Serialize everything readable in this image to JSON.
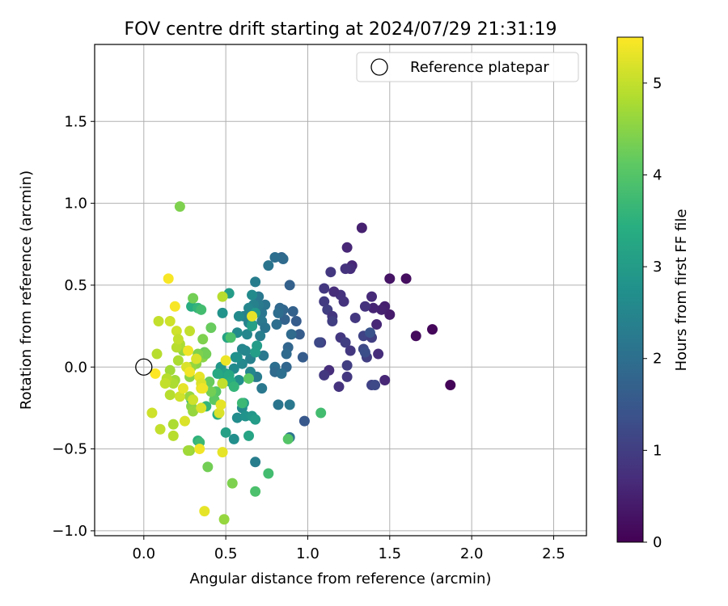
{
  "chart_data": {
    "type": "scatter",
    "title": "FOV centre drift starting at 2024/07/29 21:31:19",
    "xlabel": "Angular distance from reference (arcmin)",
    "ylabel": "Rotation from reference (arcmin)",
    "xlim": [
      -0.3,
      2.7
    ],
    "ylim": [
      -1.03,
      1.97
    ],
    "xticks": [
      "0.0",
      "0.5",
      "1.0",
      "1.5",
      "2.0",
      "2.5"
    ],
    "yticks": [
      "−1.0",
      "−0.5",
      "0.0",
      "0.5",
      "1.0",
      "1.5"
    ],
    "grid": true,
    "legend": {
      "placement": "top-right",
      "entries": [
        "Reference platepar"
      ]
    },
    "reference_point": {
      "label": "Reference platepar",
      "x": 0.0,
      "y": 0.0
    },
    "colorbar": {
      "label": "Hours from first FF file",
      "range": [
        0,
        5.5
      ],
      "ticks": [
        "0",
        "1",
        "2",
        "3",
        "4",
        "5"
      ],
      "colormap": "viridis"
    },
    "points": [
      {
        "x": 1.87,
        "y": -0.11,
        "h": 0.05
      },
      {
        "x": 1.76,
        "y": 0.23,
        "h": 0.1
      },
      {
        "x": 1.66,
        "y": 0.19,
        "h": 0.15
      },
      {
        "x": 1.6,
        "y": 0.54,
        "h": 0.2
      },
      {
        "x": 1.5,
        "y": 0.54,
        "h": 0.3
      },
      {
        "x": 1.5,
        "y": 0.32,
        "h": 0.4
      },
      {
        "x": 1.47,
        "y": 0.37,
        "h": 0.45
      },
      {
        "x": 1.45,
        "y": 0.35,
        "h": 0.5
      },
      {
        "x": 1.47,
        "y": -0.08,
        "h": 0.6
      },
      {
        "x": 1.42,
        "y": 0.26,
        "h": 0.6
      },
      {
        "x": 1.43,
        "y": 0.08,
        "h": 0.7
      },
      {
        "x": 1.4,
        "y": 0.36,
        "h": 0.55
      },
      {
        "x": 1.39,
        "y": 0.43,
        "h": 0.65
      },
      {
        "x": 1.35,
        "y": 0.37,
        "h": 0.8
      },
      {
        "x": 1.33,
        "y": 0.85,
        "h": 0.5
      },
      {
        "x": 1.27,
        "y": 0.62,
        "h": 0.6
      },
      {
        "x": 1.26,
        "y": 0.6,
        "h": 0.7
      },
      {
        "x": 1.24,
        "y": 0.73,
        "h": 0.6
      },
      {
        "x": 1.23,
        "y": 0.6,
        "h": 0.8
      },
      {
        "x": 1.29,
        "y": 0.3,
        "h": 0.9
      },
      {
        "x": 1.14,
        "y": 0.58,
        "h": 0.9
      },
      {
        "x": 1.2,
        "y": 0.44,
        "h": 0.8
      },
      {
        "x": 1.16,
        "y": 0.46,
        "h": 0.7
      },
      {
        "x": 1.1,
        "y": 0.48,
        "h": 0.9
      },
      {
        "x": 1.1,
        "y": 0.4,
        "h": 0.95
      },
      {
        "x": 1.12,
        "y": 0.35,
        "h": 1.0
      },
      {
        "x": 1.15,
        "y": 0.31,
        "h": 0.85
      },
      {
        "x": 1.15,
        "y": 0.28,
        "h": 1.0
      },
      {
        "x": 1.22,
        "y": 0.4,
        "h": 0.8
      },
      {
        "x": 1.2,
        "y": 0.18,
        "h": 0.9
      },
      {
        "x": 1.23,
        "y": 0.15,
        "h": 1.0
      },
      {
        "x": 1.26,
        "y": 0.1,
        "h": 0.9
      },
      {
        "x": 1.24,
        "y": 0.01,
        "h": 1.0
      },
      {
        "x": 1.24,
        "y": -0.06,
        "h": 0.9
      },
      {
        "x": 1.19,
        "y": -0.12,
        "h": 0.8
      },
      {
        "x": 1.13,
        "y": -0.02,
        "h": 0.7
      },
      {
        "x": 1.1,
        "y": -0.05,
        "h": 0.9
      },
      {
        "x": 1.08,
        "y": 0.15,
        "h": 1.0
      },
      {
        "x": 1.07,
        "y": 0.15,
        "h": 1.2
      },
      {
        "x": 1.34,
        "y": 0.19,
        "h": 1.1
      },
      {
        "x": 1.34,
        "y": 0.11,
        "h": 1.2
      },
      {
        "x": 1.36,
        "y": 0.06,
        "h": 1.0
      },
      {
        "x": 1.35,
        "y": 0.09,
        "h": 1.3
      },
      {
        "x": 1.39,
        "y": 0.18,
        "h": 1.0
      },
      {
        "x": 1.39,
        "y": -0.11,
        "h": 1.1
      },
      {
        "x": 1.41,
        "y": -0.11,
        "h": 1.2
      },
      {
        "x": 1.38,
        "y": 0.21,
        "h": 1.4
      },
      {
        "x": 0.98,
        "y": -0.33,
        "h": 1.5
      },
      {
        "x": 0.97,
        "y": 0.06,
        "h": 1.6
      },
      {
        "x": 0.95,
        "y": 0.2,
        "h": 1.6
      },
      {
        "x": 0.93,
        "y": 0.28,
        "h": 1.6
      },
      {
        "x": 0.91,
        "y": 0.34,
        "h": 1.7
      },
      {
        "x": 0.89,
        "y": 0.5,
        "h": 1.7
      },
      {
        "x": 0.9,
        "y": 0.2,
        "h": 1.9
      },
      {
        "x": 0.88,
        "y": 0.12,
        "h": 1.8
      },
      {
        "x": 0.87,
        "y": 0.08,
        "h": 1.9
      },
      {
        "x": 0.87,
        "y": 0.0,
        "h": 1.8
      },
      {
        "x": 0.86,
        "y": 0.29,
        "h": 1.75
      },
      {
        "x": 0.85,
        "y": 0.35,
        "h": 1.8
      },
      {
        "x": 0.84,
        "y": 0.67,
        "h": 1.8
      },
      {
        "x": 0.85,
        "y": 0.66,
        "h": 1.9
      },
      {
        "x": 0.8,
        "y": 0.67,
        "h": 2.0
      },
      {
        "x": 0.83,
        "y": 0.36,
        "h": 1.85
      },
      {
        "x": 0.82,
        "y": 0.33,
        "h": 1.95
      },
      {
        "x": 0.81,
        "y": 0.26,
        "h": 2.0
      },
      {
        "x": 0.8,
        "y": 0.0,
        "h": 2.0
      },
      {
        "x": 0.8,
        "y": -0.03,
        "h": 1.9
      },
      {
        "x": 0.84,
        "y": -0.04,
        "h": 2.0
      },
      {
        "x": 0.82,
        "y": -0.23,
        "h": 2.1
      },
      {
        "x": 0.89,
        "y": -0.23,
        "h": 2.2
      },
      {
        "x": 0.89,
        "y": -0.43,
        "h": 2.1
      },
      {
        "x": 0.76,
        "y": 0.62,
        "h": 2.1
      },
      {
        "x": 0.74,
        "y": 0.38,
        "h": 2.1
      },
      {
        "x": 0.72,
        "y": 0.33,
        "h": 2.15
      },
      {
        "x": 0.7,
        "y": 0.43,
        "h": 2.2
      },
      {
        "x": 0.7,
        "y": 0.38,
        "h": 2.25
      },
      {
        "x": 0.68,
        "y": 0.52,
        "h": 2.3
      },
      {
        "x": 0.67,
        "y": 0.38,
        "h": 2.4
      },
      {
        "x": 0.72,
        "y": 0.28,
        "h": 2.2
      },
      {
        "x": 0.74,
        "y": 0.24,
        "h": 2.1
      },
      {
        "x": 0.71,
        "y": 0.19,
        "h": 2.3
      },
      {
        "x": 0.73,
        "y": 0.07,
        "h": 2.2
      },
      {
        "x": 0.72,
        "y": -0.13,
        "h": 2.2
      },
      {
        "x": 0.69,
        "y": -0.06,
        "h": 2.3
      },
      {
        "x": 0.68,
        "y": -0.06,
        "h": 2.25
      },
      {
        "x": 0.68,
        "y": -0.58,
        "h": 2.3
      },
      {
        "x": 0.65,
        "y": 0.05,
        "h": 2.4
      },
      {
        "x": 0.65,
        "y": -0.03,
        "h": 2.5
      },
      {
        "x": 0.66,
        "y": 0.44,
        "h": 2.6
      },
      {
        "x": 0.64,
        "y": 0.36,
        "h": 2.5
      },
      {
        "x": 0.64,
        "y": 0.27,
        "h": 2.45
      },
      {
        "x": 0.63,
        "y": 0.2,
        "h": 2.5
      },
      {
        "x": 0.62,
        "y": 0.1,
        "h": 2.5
      },
      {
        "x": 0.61,
        "y": 0.31,
        "h": 2.4
      },
      {
        "x": 0.6,
        "y": 0.11,
        "h": 2.5
      },
      {
        "x": 0.6,
        "y": 0.02,
        "h": 2.55
      },
      {
        "x": 0.58,
        "y": 0.31,
        "h": 2.6
      },
      {
        "x": 0.57,
        "y": 0.21,
        "h": 2.6
      },
      {
        "x": 0.57,
        "y": 0.06,
        "h": 2.7
      },
      {
        "x": 0.56,
        "y": 0.06,
        "h": 2.75
      },
      {
        "x": 0.55,
        "y": -0.01,
        "h": 2.6
      },
      {
        "x": 0.58,
        "y": -0.08,
        "h": 2.7
      },
      {
        "x": 0.57,
        "y": -0.31,
        "h": 2.65
      },
      {
        "x": 0.55,
        "y": -0.44,
        "h": 2.7
      },
      {
        "x": 0.6,
        "y": -0.25,
        "h": 2.6
      },
      {
        "x": 0.62,
        "y": -0.3,
        "h": 2.8
      },
      {
        "x": 0.66,
        "y": -0.3,
        "h": 2.9
      },
      {
        "x": 0.68,
        "y": -0.32,
        "h": 3.0
      },
      {
        "x": 0.61,
        "y": -0.22,
        "h": 3.0
      },
      {
        "x": 0.68,
        "y": 0.33,
        "h": 2.9
      },
      {
        "x": 0.69,
        "y": 0.13,
        "h": 3.0
      },
      {
        "x": 0.68,
        "y": 0.09,
        "h": 3.05
      },
      {
        "x": 0.66,
        "y": 0.26,
        "h": 2.95
      },
      {
        "x": 0.66,
        "y": 0.25,
        "h": 3.1
      },
      {
        "x": 0.64,
        "y": -0.42,
        "h": 3.2
      },
      {
        "x": 0.52,
        "y": 0.45,
        "h": 3.0
      },
      {
        "x": 0.51,
        "y": 0.18,
        "h": 3.2
      },
      {
        "x": 0.5,
        "y": -0.4,
        "h": 3.1
      },
      {
        "x": 0.48,
        "y": 0.33,
        "h": 2.8
      },
      {
        "x": 0.47,
        "y": 0.0,
        "h": 2.9
      },
      {
        "x": 0.48,
        "y": -0.1,
        "h": 3.0
      },
      {
        "x": 0.5,
        "y": -0.04,
        "h": 3.1
      },
      {
        "x": 0.49,
        "y": -0.07,
        "h": 3.2
      },
      {
        "x": 0.52,
        "y": -0.05,
        "h": 3.3
      },
      {
        "x": 0.53,
        "y": -0.09,
        "h": 3.4
      },
      {
        "x": 0.45,
        "y": -0.04,
        "h": 3.3
      },
      {
        "x": 0.45,
        "y": -0.29,
        "h": 3.4
      },
      {
        "x": 0.38,
        "y": -0.24,
        "h": 3.6
      },
      {
        "x": 0.33,
        "y": -0.45,
        "h": 3.5
      },
      {
        "x": 0.34,
        "y": -0.46,
        "h": 3.7
      },
      {
        "x": 0.29,
        "y": 0.37,
        "h": 3.4
      },
      {
        "x": 0.33,
        "y": 0.36,
        "h": 3.6
      },
      {
        "x": 0.35,
        "y": 0.35,
        "h": 3.8
      },
      {
        "x": 0.29,
        "y": -0.2,
        "h": 3.5
      },
      {
        "x": 0.76,
        "y": -0.65,
        "h": 3.8
      },
      {
        "x": 0.68,
        "y": -0.76,
        "h": 3.9
      },
      {
        "x": 0.53,
        "y": 0.18,
        "h": 3.9
      },
      {
        "x": 1.08,
        "y": -0.28,
        "h": 3.8
      },
      {
        "x": 0.55,
        "y": -0.12,
        "h": 3.6
      },
      {
        "x": 0.6,
        "y": -0.22,
        "h": 3.7
      },
      {
        "x": 0.88,
        "y": -0.44,
        "h": 4.0
      },
      {
        "x": 0.64,
        "y": -0.07,
        "h": 4.1
      },
      {
        "x": 0.44,
        "y": -0.15,
        "h": 4.0
      },
      {
        "x": 0.4,
        "y": -0.09,
        "h": 4.2
      },
      {
        "x": 0.41,
        "y": 0.24,
        "h": 4.2
      },
      {
        "x": 0.43,
        "y": -0.2,
        "h": 4.1
      },
      {
        "x": 0.41,
        "y": -0.15,
        "h": 4.3
      },
      {
        "x": 0.39,
        "y": -0.61,
        "h": 4.3
      },
      {
        "x": 0.54,
        "y": -0.71,
        "h": 4.4
      },
      {
        "x": 0.3,
        "y": 0.42,
        "h": 4.3
      },
      {
        "x": 0.37,
        "y": 0.09,
        "h": 4.2
      },
      {
        "x": 0.36,
        "y": 0.17,
        "h": 4.4
      },
      {
        "x": 0.36,
        "y": 0.06,
        "h": 4.5
      },
      {
        "x": 0.38,
        "y": 0.08,
        "h": 4.3
      },
      {
        "x": 0.33,
        "y": 0.08,
        "h": 4.4
      },
      {
        "x": 0.32,
        "y": 0.02,
        "h": 4.5
      },
      {
        "x": 0.29,
        "y": 0.0,
        "h": 4.6
      },
      {
        "x": 0.28,
        "y": -0.06,
        "h": 4.5
      },
      {
        "x": 0.28,
        "y": -0.18,
        "h": 4.6
      },
      {
        "x": 0.29,
        "y": -0.24,
        "h": 4.5
      },
      {
        "x": 0.3,
        "y": -0.27,
        "h": 4.6
      },
      {
        "x": 0.28,
        "y": -0.51,
        "h": 4.6
      },
      {
        "x": 0.27,
        "y": -0.51,
        "h": 4.7
      },
      {
        "x": 0.22,
        "y": 0.98,
        "h": 4.4
      },
      {
        "x": 0.24,
        "y": 0.1,
        "h": 4.6
      },
      {
        "x": 0.22,
        "y": 0.14,
        "h": 4.8
      },
      {
        "x": 0.21,
        "y": 0.04,
        "h": 4.8
      },
      {
        "x": 0.2,
        "y": 0.12,
        "h": 4.9
      },
      {
        "x": 0.19,
        "y": -0.08,
        "h": 4.7
      },
      {
        "x": 0.18,
        "y": -0.1,
        "h": 4.8
      },
      {
        "x": 0.16,
        "y": -0.02,
        "h": 4.7
      },
      {
        "x": 0.16,
        "y": -0.17,
        "h": 4.9
      },
      {
        "x": 0.18,
        "y": -0.35,
        "h": 4.8
      },
      {
        "x": 0.18,
        "y": -0.42,
        "h": 4.9
      },
      {
        "x": 0.14,
        "y": -0.07,
        "h": 4.9
      },
      {
        "x": 0.13,
        "y": -0.1,
        "h": 5.0
      },
      {
        "x": 0.1,
        "y": -0.38,
        "h": 5.0
      },
      {
        "x": 0.05,
        "y": -0.28,
        "h": 5.1
      },
      {
        "x": 0.08,
        "y": 0.08,
        "h": 4.9
      },
      {
        "x": 0.09,
        "y": 0.28,
        "h": 5.0
      },
      {
        "x": 0.16,
        "y": 0.28,
        "h": 5.1
      },
      {
        "x": 0.2,
        "y": 0.22,
        "h": 5.1
      },
      {
        "x": 0.21,
        "y": 0.17,
        "h": 5.0
      },
      {
        "x": 0.22,
        "y": -0.18,
        "h": 5.1
      },
      {
        "x": 0.25,
        "y": -0.33,
        "h": 5.2
      },
      {
        "x": 0.24,
        "y": -0.13,
        "h": 5.3
      },
      {
        "x": 0.26,
        "y": 0.0,
        "h": 5.2
      },
      {
        "x": 0.28,
        "y": 0.22,
        "h": 5.0
      },
      {
        "x": 0.32,
        "y": 0.05,
        "h": 5.2
      },
      {
        "x": 0.3,
        "y": -0.2,
        "h": 5.1
      },
      {
        "x": 0.34,
        "y": -0.06,
        "h": 5.3
      },
      {
        "x": 0.35,
        "y": -0.1,
        "h": 5.2
      },
      {
        "x": 0.35,
        "y": -0.13,
        "h": 5.3
      },
      {
        "x": 0.36,
        "y": -0.13,
        "h": 5.4
      },
      {
        "x": 0.35,
        "y": -0.25,
        "h": 5.2
      },
      {
        "x": 0.37,
        "y": -0.88,
        "h": 5.3
      },
      {
        "x": 0.49,
        "y": -0.93,
        "h": 4.6
      },
      {
        "x": 0.48,
        "y": -0.52,
        "h": 5.3
      },
      {
        "x": 0.34,
        "y": -0.5,
        "h": 5.4
      },
      {
        "x": 0.46,
        "y": -0.28,
        "h": 5.2
      },
      {
        "x": 0.47,
        "y": -0.23,
        "h": 5.3
      },
      {
        "x": 0.48,
        "y": -0.1,
        "h": 5.0
      },
      {
        "x": 0.48,
        "y": 0.43,
        "h": 4.9
      },
      {
        "x": 0.5,
        "y": 0.04,
        "h": 5.35
      },
      {
        "x": 0.28,
        "y": -0.03,
        "h": 5.4
      },
      {
        "x": 0.27,
        "y": 0.1,
        "h": 5.4
      },
      {
        "x": 0.15,
        "y": 0.54,
        "h": 5.45
      },
      {
        "x": 0.19,
        "y": 0.37,
        "h": 5.45
      },
      {
        "x": 0.07,
        "y": -0.04,
        "h": 5.5
      },
      {
        "x": 0.66,
        "y": 0.31,
        "h": 5.3
      }
    ]
  }
}
